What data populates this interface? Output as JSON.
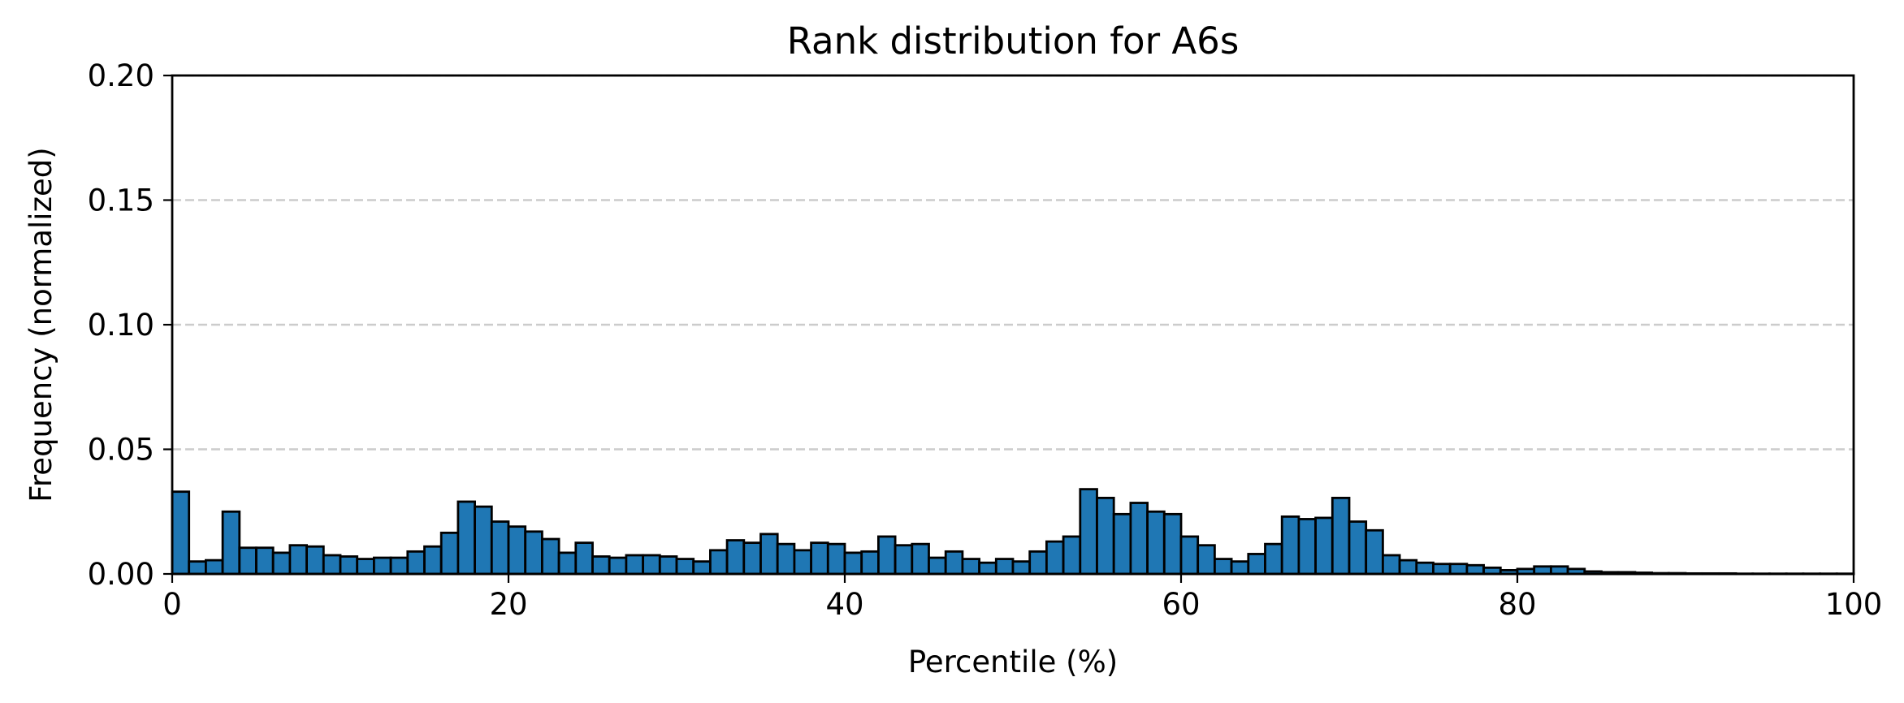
{
  "chart_data": {
    "type": "bar",
    "title": "Rank distribution for A6s",
    "xlabel": "Percentile (%)",
    "ylabel": "Frequency (normalized)",
    "xlim": [
      0,
      100
    ],
    "ylim": [
      0,
      0.2
    ],
    "xticks": [
      0,
      20,
      40,
      60,
      80,
      100
    ],
    "xtick_labels": [
      "0",
      "20",
      "40",
      "60",
      "80",
      "100"
    ],
    "yticks": [
      0,
      0.05,
      0.1,
      0.15,
      0.2
    ],
    "ytick_labels": [
      "0.00",
      "0.05",
      "0.10",
      "0.15",
      "0.20"
    ],
    "grid": "horizontal dashed",
    "bar_color": "#1f77b4",
    "bin_width": 1,
    "bin_starts": [
      0,
      1,
      2,
      3,
      4,
      5,
      6,
      7,
      8,
      9,
      10,
      11,
      12,
      13,
      14,
      15,
      16,
      17,
      18,
      19,
      20,
      21,
      22,
      23,
      24,
      25,
      26,
      27,
      28,
      29,
      30,
      31,
      32,
      33,
      34,
      35,
      36,
      37,
      38,
      39,
      40,
      41,
      42,
      43,
      44,
      45,
      46,
      47,
      48,
      49,
      50,
      51,
      52,
      53,
      54,
      55,
      56,
      57,
      58,
      59,
      60,
      61,
      62,
      63,
      64,
      65,
      66,
      67,
      68,
      69,
      70,
      71,
      72,
      73,
      74,
      75,
      76,
      77,
      78,
      79,
      80,
      81,
      82,
      83,
      84,
      85,
      86,
      87,
      88,
      89,
      90,
      91,
      92,
      93,
      94,
      95,
      96,
      97,
      98,
      99
    ],
    "values": [
      0.033,
      0.005,
      0.0055,
      0.025,
      0.0105,
      0.0105,
      0.0085,
      0.0115,
      0.011,
      0.0075,
      0.007,
      0.006,
      0.0065,
      0.0065,
      0.009,
      0.011,
      0.0165,
      0.029,
      0.027,
      0.021,
      0.019,
      0.017,
      0.014,
      0.0085,
      0.0125,
      0.007,
      0.0065,
      0.0075,
      0.0075,
      0.007,
      0.006,
      0.005,
      0.0095,
      0.0135,
      0.0125,
      0.016,
      0.012,
      0.0095,
      0.0125,
      0.012,
      0.0085,
      0.009,
      0.015,
      0.0115,
      0.012,
      0.0065,
      0.009,
      0.006,
      0.0045,
      0.006,
      0.005,
      0.009,
      0.013,
      0.015,
      0.034,
      0.0305,
      0.024,
      0.0285,
      0.025,
      0.024,
      0.015,
      0.0115,
      0.006,
      0.005,
      0.008,
      0.012,
      0.023,
      0.022,
      0.0225,
      0.0305,
      0.021,
      0.0175,
      0.0075,
      0.0055,
      0.0045,
      0.004,
      0.004,
      0.0035,
      0.0025,
      0.0015,
      0.002,
      0.003,
      0.003,
      0.002,
      0.001,
      0.0007,
      0.0007,
      0.0005,
      0.0003,
      0.0003,
      0.0002,
      0.0002,
      0.0002,
      0.0001,
      0.0001,
      0.0001,
      0.0001,
      0.0001,
      0.0001,
      0.0001
    ]
  }
}
